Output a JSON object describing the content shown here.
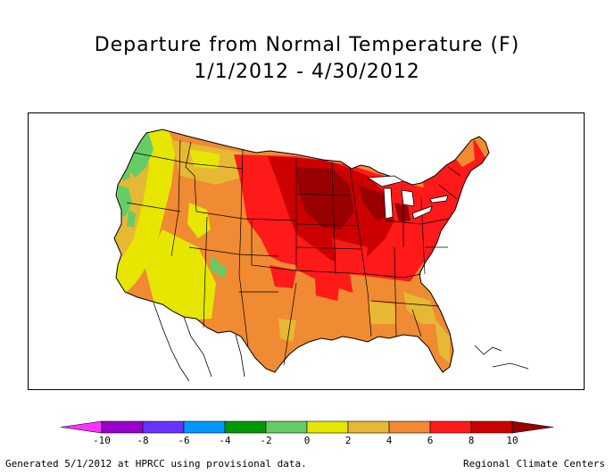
{
  "title": "Departure from Normal Temperature (F)",
  "date_range": "1/1/2012 - 4/30/2012",
  "footer_left": "Generated 5/1/2012 at HPRCC using provisional data.",
  "footer_right": "Regional Climate Centers",
  "legend": {
    "ticks": [
      "-10",
      "-8",
      "-6",
      "-4",
      "-2",
      "0",
      "2",
      "4",
      "6",
      "8",
      "10"
    ],
    "bins": [
      {
        "range": "< -10",
        "color": "#ff33ff"
      },
      {
        "range": "-10 to -8",
        "color": "#9900cc"
      },
      {
        "range": "-8 to -6",
        "color": "#6633ff"
      },
      {
        "range": "-6 to -4",
        "color": "#0099ff"
      },
      {
        "range": "-4 to -2",
        "color": "#009900"
      },
      {
        "range": "-2 to 0",
        "color": "#66cc66"
      },
      {
        "range": "0 to 2",
        "color": "#e6e600"
      },
      {
        "range": "2 to 4",
        "color": "#e6b833"
      },
      {
        "range": "4 to 6",
        "color": "#f08a33"
      },
      {
        "range": "6 to 8",
        "color": "#ff1a1a"
      },
      {
        "range": "8 to 10",
        "color": "#cc0000"
      },
      {
        "range": "> 10",
        "color": "#990000"
      }
    ]
  }
}
